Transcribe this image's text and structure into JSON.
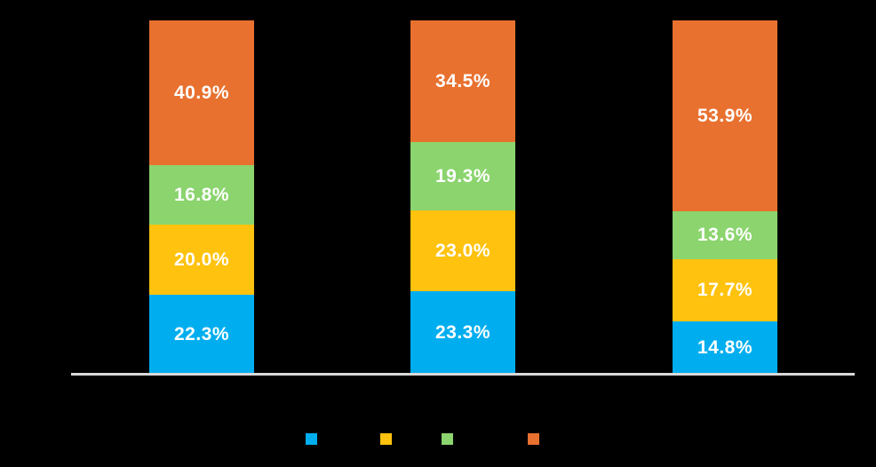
{
  "canvas": {
    "background": "#000000"
  },
  "axis": {
    "baseline_color": "#D9D9D9"
  },
  "chart_data": {
    "type": "bar",
    "stacked": true,
    "orientation": "vertical",
    "title": "",
    "xlabel": "",
    "ylabel": "",
    "ylim": [
      0,
      100
    ],
    "grid": false,
    "categories": [
      "",
      "",
      ""
    ],
    "series": [
      {
        "name": "series-blue",
        "color": "#00AEEF",
        "values": [
          22.3,
          23.3,
          14.8
        ],
        "labels": [
          "22.3%",
          "23.3%",
          "14.8%"
        ]
      },
      {
        "name": "series-yellow",
        "color": "#FFC20E",
        "values": [
          20.0,
          23.0,
          17.7
        ],
        "labels": [
          "20.0%",
          "23.0%",
          "17.7%"
        ]
      },
      {
        "name": "series-green",
        "color": "#8BD46E",
        "values": [
          16.8,
          19.3,
          13.6
        ],
        "labels": [
          "16.8%",
          "19.3%",
          "13.6%"
        ]
      },
      {
        "name": "series-orange",
        "color": "#E8712F",
        "values": [
          40.9,
          34.5,
          53.9
        ],
        "labels": [
          "40.9%",
          "34.5%",
          "53.9%"
        ]
      }
    ],
    "value_label_color": "#FFFFFF",
    "legend": {
      "position": "bottom",
      "swatch_colors": [
        "#00AEEF",
        "#FFC20E",
        "#8BD46E",
        "#E8712F"
      ],
      "swatch_names": [
        "legend-swatch-blue",
        "legend-swatch-yellow",
        "legend-swatch-green",
        "legend-swatch-orange"
      ]
    }
  }
}
